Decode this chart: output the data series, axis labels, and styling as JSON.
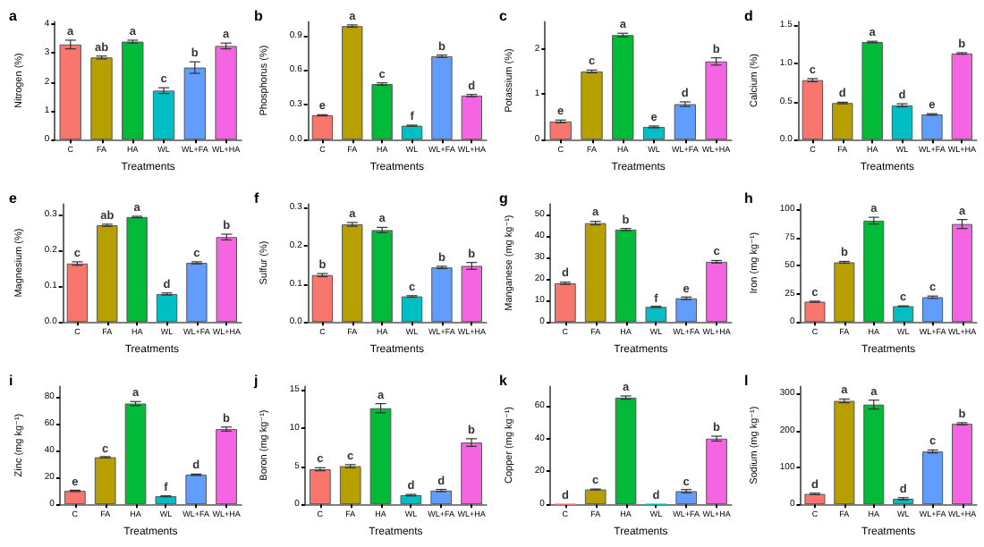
{
  "chart_data": [
    {
      "type": "bar",
      "title": "a",
      "xlabel": "Treatments",
      "ylabel": "Nitrogen (%)",
      "categories": [
        "C",
        "FA",
        "HA",
        "WL",
        "WL+FA",
        "WL+HA"
      ],
      "colors": [
        "#f8766d",
        "#b79f00",
        "#00ba38",
        "#00bfc4",
        "#619cff",
        "#f564e3"
      ],
      "values": [
        3.3,
        2.85,
        3.4,
        1.7,
        2.5,
        3.25
      ],
      "errors": [
        0.15,
        0.05,
        0.05,
        0.1,
        0.2,
        0.1
      ],
      "ylim": [
        0,
        4.1
      ],
      "yticks": [
        0,
        1,
        2,
        3,
        4
      ],
      "annotations": [
        {
          "text": "a",
          "x": "C",
          "y": 3.45
        },
        {
          "text": "ab",
          "x": "FA",
          "y": 2.9
        },
        {
          "text": "a",
          "x": "HA",
          "y": 3.45
        },
        {
          "text": "c",
          "x": "WL",
          "y": 1.8
        },
        {
          "text": "b",
          "x": "WL+FA",
          "y": 2.7
        },
        {
          "text": "a",
          "x": "WL+HA",
          "y": 3.35
        }
      ]
    },
    {
      "type": "bar",
      "title": "b",
      "xlabel": "Treatments",
      "ylabel": "Phosphorus (%)",
      "categories": [
        "C",
        "FA",
        "HA",
        "WL",
        "WL+FA",
        "WL+HA"
      ],
      "colors": [
        "#f8766d",
        "#b79f00",
        "#00ba38",
        "#00bfc4",
        "#619cff",
        "#f564e3"
      ],
      "values": [
        0.21,
        0.98,
        0.48,
        0.12,
        0.72,
        0.38
      ],
      "errors": [
        0.005,
        0.01,
        0.01,
        0.005,
        0.01,
        0.01
      ],
      "ylim": [
        0,
        1.02
      ],
      "yticks": [
        {
          "value": 0,
          "label": "0.0"
        },
        {
          "value": 0.3,
          "label": "0.3"
        },
        {
          "value": 0.6,
          "label": "0.6"
        },
        {
          "value": 0.9,
          "label": "0.9"
        }
      ],
      "annotations": [
        {
          "text": "e",
          "x": "C",
          "y": 0.215
        },
        {
          "text": "a",
          "x": "FA",
          "y": 0.99
        },
        {
          "text": "c",
          "x": "HA",
          "y": 0.49
        },
        {
          "text": "f",
          "x": "WL",
          "y": 0.125
        },
        {
          "text": "b",
          "x": "WL+FA",
          "y": 0.73
        },
        {
          "text": "d",
          "x": "WL+HA",
          "y": 0.39
        }
      ]
    },
    {
      "type": "bar",
      "title": "c",
      "xlabel": "Treatments",
      "ylabel": "Potassium (%)",
      "categories": [
        "C",
        "FA",
        "HA",
        "WL",
        "WL+FA",
        "WL+HA"
      ],
      "colors": [
        "#f8766d",
        "#b79f00",
        "#00ba38",
        "#00bfc4",
        "#619cff",
        "#f564e3"
      ],
      "values": [
        0.4,
        1.5,
        2.3,
        0.28,
        0.78,
        1.72
      ],
      "errors": [
        0.03,
        0.03,
        0.04,
        0.02,
        0.05,
        0.08
      ],
      "ylim": [
        0,
        2.6
      ],
      "yticks": [
        0,
        1,
        2
      ],
      "annotations": [
        {
          "text": "e",
          "x": "C",
          "y": 0.43
        },
        {
          "text": "c",
          "x": "FA",
          "y": 1.53
        },
        {
          "text": "a",
          "x": "HA",
          "y": 2.34
        },
        {
          "text": "e",
          "x": "WL",
          "y": 0.3
        },
        {
          "text": "d",
          "x": "WL+FA",
          "y": 0.83
        },
        {
          "text": "b",
          "x": "WL+HA",
          "y": 1.8
        }
      ]
    },
    {
      "type": "bar",
      "title": "d",
      "xlabel": "Treatments",
      "ylabel": "Calcium (%)",
      "categories": [
        "C",
        "FA",
        "HA",
        "WL",
        "WL+FA",
        "WL+HA"
      ],
      "colors": [
        "#f8766d",
        "#b79f00",
        "#00ba38",
        "#00bfc4",
        "#619cff",
        "#f564e3"
      ],
      "values": [
        0.78,
        0.48,
        1.28,
        0.45,
        0.33,
        1.13
      ],
      "errors": [
        0.02,
        0.01,
        0.01,
        0.02,
        0.01,
        0.01
      ],
      "ylim": [
        0,
        1.55
      ],
      "yticks": [
        {
          "value": 0,
          "label": "0.0"
        },
        {
          "value": 0.5,
          "label": "0.5"
        },
        {
          "value": 1,
          "label": "1.0"
        },
        {
          "value": 1.5,
          "label": "1.5"
        }
      ],
      "annotations": [
        {
          "text": "c",
          "x": "C",
          "y": 0.8
        },
        {
          "text": "d",
          "x": "FA",
          "y": 0.49
        },
        {
          "text": "a",
          "x": "HA",
          "y": 1.29
        },
        {
          "text": "d",
          "x": "WL",
          "y": 0.47
        },
        {
          "text": "e",
          "x": "WL+FA",
          "y": 0.34
        },
        {
          "text": "b",
          "x": "WL+HA",
          "y": 1.14
        }
      ]
    },
    {
      "type": "bar",
      "title": "e",
      "xlabel": "Treatments",
      "ylabel": "Magnesium (%)",
      "categories": [
        "C",
        "FA",
        "HA",
        "WL",
        "WL+FA",
        "WL+HA"
      ],
      "colors": [
        "#f8766d",
        "#b79f00",
        "#00ba38",
        "#00bfc4",
        "#619cff",
        "#f564e3"
      ],
      "values": [
        0.163,
        0.27,
        0.293,
        0.078,
        0.165,
        0.237
      ],
      "errors": [
        0.005,
        0.003,
        0.002,
        0.003,
        0.003,
        0.008
      ],
      "ylim": [
        0,
        0.33
      ],
      "yticks": [
        {
          "value": 0,
          "label": "0.0"
        },
        {
          "value": 0.1,
          "label": "0.1"
        },
        {
          "value": 0.2,
          "label": "0.2"
        },
        {
          "value": 0.3,
          "label": "0.3"
        }
      ],
      "annotations": [
        {
          "text": "c",
          "x": "C",
          "y": 0.168
        },
        {
          "text": "ab",
          "x": "FA",
          "y": 0.273
        },
        {
          "text": "a",
          "x": "HA",
          "y": 0.295
        },
        {
          "text": "d",
          "x": "WL",
          "y": 0.081
        },
        {
          "text": "c",
          "x": "WL+FA",
          "y": 0.168
        },
        {
          "text": "b",
          "x": "WL+HA",
          "y": 0.245
        }
      ]
    },
    {
      "type": "bar",
      "title": "f",
      "xlabel": "Treatments",
      "ylabel": "Sulfur (%)",
      "categories": [
        "C",
        "FA",
        "HA",
        "WL",
        "WL+FA",
        "WL+HA"
      ],
      "colors": [
        "#f8766d",
        "#b79f00",
        "#00ba38",
        "#00bfc4",
        "#619cff",
        "#f564e3"
      ],
      "values": [
        0.123,
        0.256,
        0.241,
        0.067,
        0.143,
        0.147
      ],
      "errors": [
        0.004,
        0.005,
        0.007,
        0.002,
        0.003,
        0.009
      ],
      "ylim": [
        0,
        0.31
      ],
      "yticks": [
        {
          "value": 0,
          "label": "0.0"
        },
        {
          "value": 0.1,
          "label": "0.1"
        },
        {
          "value": 0.2,
          "label": "0.2"
        },
        {
          "value": 0.3,
          "label": "0.3"
        }
      ],
      "annotations": [
        {
          "text": "b",
          "x": "C",
          "y": 0.127
        },
        {
          "text": "a",
          "x": "FA",
          "y": 0.261
        },
        {
          "text": "a",
          "x": "HA",
          "y": 0.248
        },
        {
          "text": "c",
          "x": "WL",
          "y": 0.069
        },
        {
          "text": "b",
          "x": "WL+FA",
          "y": 0.146
        },
        {
          "text": "b",
          "x": "WL+HA",
          "y": 0.156
        }
      ]
    },
    {
      "type": "bar",
      "title": "g",
      "xlabel": "Treatments",
      "ylabel": "Manganese (mg kg⁻¹)",
      "categories": [
        "C",
        "FA",
        "HA",
        "WL",
        "WL+FA",
        "WL+HA"
      ],
      "colors": [
        "#f8766d",
        "#b79f00",
        "#00ba38",
        "#00bfc4",
        "#619cff",
        "#f564e3"
      ],
      "values": [
        18,
        46,
        43,
        7,
        11,
        28
      ],
      "errors": [
        0.5,
        0.8,
        0.5,
        0.3,
        0.6,
        0.6
      ],
      "ylim": [
        0,
        55
      ],
      "yticks": [
        0,
        10,
        20,
        30,
        40,
        50
      ],
      "annotations": [
        {
          "text": "d",
          "x": "C",
          "y": 19
        },
        {
          "text": "a",
          "x": "FA",
          "y": 47.3
        },
        {
          "text": "b",
          "x": "HA",
          "y": 43.5
        },
        {
          "text": "f",
          "x": "WL",
          "y": 6.8
        },
        {
          "text": "e",
          "x": "WL+FA",
          "y": 11.4
        },
        {
          "text": "c",
          "x": "WL+HA",
          "y": 28.9
        }
      ]
    },
    {
      "type": "bar",
      "title": "h",
      "xlabel": "Treatments",
      "ylabel": "Iron (mg kg⁻¹)",
      "categories": [
        "C",
        "FA",
        "HA",
        "WL",
        "WL+FA",
        "WL+HA"
      ],
      "colors": [
        "#f8766d",
        "#b79f00",
        "#00ba38",
        "#00bfc4",
        "#619cff",
        "#f564e3"
      ],
      "values": [
        18,
        53,
        90,
        14,
        22,
        87
      ],
      "errors": [
        0.5,
        0.8,
        3,
        0.3,
        1,
        4
      ],
      "ylim": [
        0,
        105
      ],
      "yticks": [
        0,
        25,
        50,
        75,
        100
      ],
      "annotations": [
        {
          "text": "c",
          "x": "C",
          "y": 18.5
        },
        {
          "text": "b",
          "x": "FA",
          "y": 53.8
        },
        {
          "text": "a",
          "x": "HA",
          "y": 93
        },
        {
          "text": "c",
          "x": "WL",
          "y": 14.3
        },
        {
          "text": "c",
          "x": "WL+FA",
          "y": 23
        },
        {
          "text": "a",
          "x": "WL+HA",
          "y": 91
        }
      ]
    },
    {
      "type": "bar",
      "title": "i",
      "xlabel": "Treatments",
      "ylabel": "Zinc (mg kg⁻¹)",
      "categories": [
        "C",
        "FA",
        "HA",
        "WL",
        "WL+FA",
        "WL+HA"
      ],
      "colors": [
        "#f8766d",
        "#b79f00",
        "#00ba38",
        "#00bfc4",
        "#619cff",
        "#f564e3"
      ],
      "values": [
        10,
        35,
        75,
        6,
        22,
        56
      ],
      "errors": [
        0.5,
        0.5,
        1.5,
        0.3,
        0.5,
        1.5
      ],
      "ylim": [
        0,
        88
      ],
      "yticks": [
        0,
        20,
        40,
        60,
        80
      ],
      "annotations": [
        {
          "text": "e",
          "x": "C",
          "y": 10
        },
        {
          "text": "c",
          "x": "FA",
          "y": 35
        },
        {
          "text": "a",
          "x": "HA",
          "y": 76.5
        },
        {
          "text": "f",
          "x": "WL",
          "y": 5.8
        },
        {
          "text": "d",
          "x": "WL+FA",
          "y": 22.5
        },
        {
          "text": "b",
          "x": "WL+HA",
          "y": 57.5
        }
      ]
    },
    {
      "type": "bar",
      "title": "j",
      "xlabel": "Treatments",
      "ylabel": "Boron (mg kg⁻¹)",
      "categories": [
        "C",
        "FA",
        "HA",
        "WL",
        "WL+FA",
        "WL+HA"
      ],
      "colors": [
        "#f8766d",
        "#b79f00",
        "#00ba38",
        "#00bfc4",
        "#619cff",
        "#f564e3"
      ],
      "values": [
        4.6,
        5.0,
        12.6,
        1.2,
        1.8,
        8.1
      ],
      "errors": [
        0.2,
        0.2,
        0.6,
        0.1,
        0.15,
        0.5
      ],
      "ylim": [
        0,
        15.5
      ],
      "yticks": [
        0,
        5,
        10,
        15
      ],
      "annotations": [
        {
          "text": "c",
          "x": "C",
          "y": 4.8
        },
        {
          "text": "c",
          "x": "FA",
          "y": 5.2
        },
        {
          "text": "a",
          "x": "HA",
          "y": 13.2
        },
        {
          "text": "d",
          "x": "WL",
          "y": 1.3
        },
        {
          "text": "d",
          "x": "WL+FA",
          "y": 1.95
        },
        {
          "text": "b",
          "x": "WL+HA",
          "y": 8.6
        }
      ]
    },
    {
      "type": "bar",
      "title": "k",
      "xlabel": "Treatments",
      "ylabel": "Copper (mg kg⁻¹)",
      "categories": [
        "C",
        "FA",
        "HA",
        "WL",
        "WL+FA",
        "WL+HA"
      ],
      "colors": [
        "#f8766d",
        "#b79f00",
        "#00ba38",
        "#00bfc4",
        "#619cff",
        "#f564e3"
      ],
      "values": [
        0,
        9,
        65,
        0,
        8,
        40
      ],
      "errors": [
        null,
        0.3,
        1,
        null,
        1,
        1.5
      ],
      "ylim": [
        0,
        72
      ],
      "yticks": [
        0,
        20,
        40,
        60
      ],
      "annotations": [
        {
          "text": "d",
          "x": "C",
          "y": 0
        },
        {
          "text": "c",
          "x": "FA",
          "y": 9.3
        },
        {
          "text": "a",
          "x": "HA",
          "y": 66
        },
        {
          "text": "d",
          "x": "WL",
          "y": 0
        },
        {
          "text": "c",
          "x": "WL+FA",
          "y": 8.5
        },
        {
          "text": "b",
          "x": "WL+HA",
          "y": 41.5
        }
      ]
    },
    {
      "type": "bar",
      "title": "l",
      "xlabel": "Treatments",
      "ylabel": "Sodium (mg kg⁻¹)",
      "categories": [
        "C",
        "FA",
        "HA",
        "WL",
        "WL+FA",
        "WL+HA"
      ],
      "colors": [
        "#f8766d",
        "#b79f00",
        "#00ba38",
        "#00bfc4",
        "#619cff",
        "#f564e3"
      ],
      "values": [
        28,
        280,
        270,
        15,
        143,
        218
      ],
      "errors": [
        2,
        5,
        12,
        3,
        4,
        3
      ],
      "ylim": [
        0,
        320
      ],
      "yticks": [
        0,
        100,
        200,
        300
      ],
      "annotations": [
        {
          "text": "d",
          "x": "C",
          "y": 30
        },
        {
          "text": "a",
          "x": "FA",
          "y": 285
        },
        {
          "text": "a",
          "x": "HA",
          "y": 282
        },
        {
          "text": "d",
          "x": "WL",
          "y": 18
        },
        {
          "text": "c",
          "x": "WL+FA",
          "y": 147
        },
        {
          "text": "b",
          "x": "WL+HA",
          "y": 221
        }
      ]
    }
  ]
}
